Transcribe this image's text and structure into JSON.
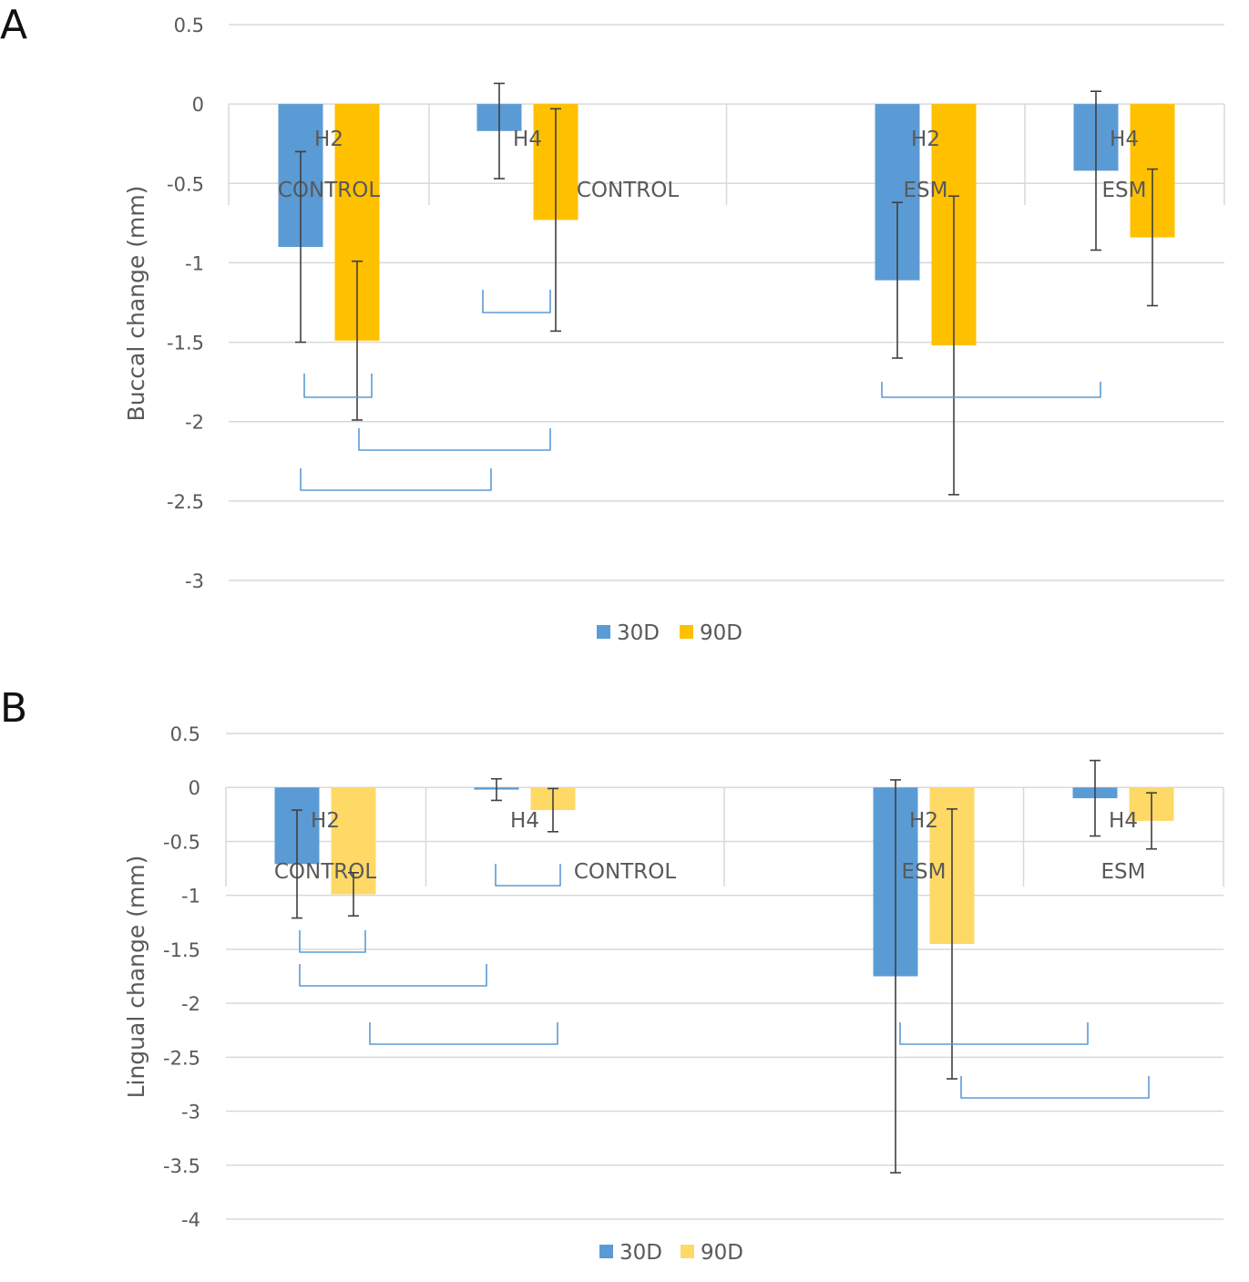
{
  "colors": {
    "series_30d": "#5B9BD5",
    "series_90d_a": "#FFC000",
    "series_90d_b": "#FFD966",
    "bracket": "#5B9BD5",
    "grid": "#D9D9D9",
    "text": "#595959",
    "error_bar": "#404040"
  },
  "chart_data": [
    {
      "panel_label": "A",
      "type": "bar",
      "ylabel": "Buccal change (mm)",
      "ylim": [
        -3,
        0.5
      ],
      "yticks": [
        "0.5",
        "0",
        "-0.5",
        "-1",
        "-1.5",
        "-2",
        "-2.5",
        "-3"
      ],
      "groups": [
        {
          "site": "H2",
          "treatment": "CONTROL"
        },
        {
          "site": "H4",
          "treatment": "CONTROL"
        },
        {
          "site": "H2",
          "treatment": "ESM"
        },
        {
          "site": "H4",
          "treatment": "ESM"
        }
      ],
      "series": [
        {
          "name": "30D",
          "values": [
            -0.9,
            -0.17,
            -1.11,
            -0.42
          ],
          "error": [
            0.6,
            0.3,
            0.49,
            0.5
          ]
        },
        {
          "name": "90D",
          "values": [
            -1.49,
            -0.73,
            -1.52,
            -0.84
          ],
          "error": [
            0.5,
            0.7,
            0.94,
            0.43
          ]
        }
      ],
      "legend": [
        "30D",
        "90D"
      ]
    },
    {
      "panel_label": "B",
      "type": "bar",
      "ylabel": "Lingual change (mm)",
      "ylim": [
        -4,
        0.5
      ],
      "yticks": [
        "0.5",
        "0",
        "-0.5",
        "-1",
        "-1.5",
        "-2",
        "-2.5",
        "-3",
        "-3.5",
        "-4"
      ],
      "groups": [
        {
          "site": "H2",
          "treatment": "CONTROL"
        },
        {
          "site": "H4",
          "treatment": "CONTROL"
        },
        {
          "site": "H2",
          "treatment": "ESM"
        },
        {
          "site": "H4",
          "treatment": "ESM"
        }
      ],
      "series": [
        {
          "name": "30D",
          "values": [
            -0.71,
            -0.02,
            -1.75,
            -0.1
          ],
          "error": [
            0.5,
            0.1,
            1.82,
            0.35
          ]
        },
        {
          "name": "90D",
          "values": [
            -0.99,
            -0.21,
            -1.45,
            -0.31
          ],
          "error": [
            0.2,
            0.2,
            1.25,
            0.26
          ]
        }
      ],
      "legend": [
        "30D",
        "90D"
      ]
    }
  ]
}
